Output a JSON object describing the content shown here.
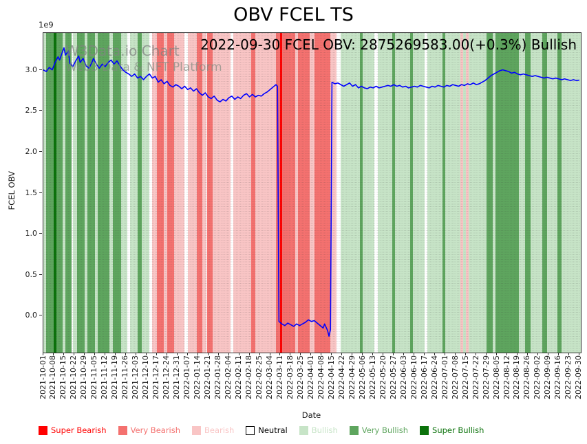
{
  "annotation": "2022-09-30 FCEL OBV: 2875269583.00(+0.3%) Bullish",
  "watermark": {
    "line1": "W3Data.io Chart",
    "line2": "Web3 Data & NFT Platform"
  },
  "chart_data": {
    "type": "line",
    "title": "OBV FCEL TS",
    "xlabel": "Date",
    "ylabel": "FCEL OBV",
    "y_multiplier": "1e9",
    "ylim": [
      -0.45,
      3.45
    ],
    "yticks": [
      0.0,
      0.5,
      1.0,
      1.5,
      2.0,
      2.5,
      3.0
    ],
    "x_total_days": 365,
    "x_tick_step_days": 7,
    "x_tick_labels": [
      "2021-10-01",
      "2021-10-08",
      "2021-10-15",
      "2021-10-22",
      "2021-10-29",
      "2021-11-05",
      "2021-11-12",
      "2021-11-19",
      "2021-11-26",
      "2021-12-03",
      "2021-12-10",
      "2021-12-17",
      "2021-12-24",
      "2021-12-31",
      "2022-01-07",
      "2022-01-14",
      "2022-01-21",
      "2022-01-28",
      "2022-02-04",
      "2022-02-11",
      "2022-02-18",
      "2022-02-25",
      "2022-03-04",
      "2022-03-11",
      "2022-03-18",
      "2022-03-25",
      "2022-04-01",
      "2022-04-08",
      "2022-04-15",
      "2022-04-22",
      "2022-04-29",
      "2022-05-06",
      "2022-05-13",
      "2022-05-20",
      "2022-05-27",
      "2022-06-03",
      "2022-06-10",
      "2022-06-17",
      "2022-06-24",
      "2022-07-01",
      "2022-07-08",
      "2022-07-15",
      "2022-07-22",
      "2022-07-29",
      "2022-08-05",
      "2022-08-12",
      "2022-08-19",
      "2022-08-26",
      "2022-09-02",
      "2022-09-09",
      "2022-09-16",
      "2022-09-23",
      "2022-09-30"
    ],
    "grid": {
      "vertical_dotted_daily": true,
      "horizontal": false
    },
    "series": [
      {
        "name": "FCEL OBV",
        "color": "#0000ff",
        "unit": "1e9",
        "points": [
          [
            0,
            3.0
          ],
          [
            2,
            2.98
          ],
          [
            4,
            3.03
          ],
          [
            6,
            3.0
          ],
          [
            8,
            3.09
          ],
          [
            10,
            3.16
          ],
          [
            11,
            3.12
          ],
          [
            13,
            3.22
          ],
          [
            14,
            3.27
          ],
          [
            15,
            3.18
          ],
          [
            17,
            3.23
          ],
          [
            18,
            3.08
          ],
          [
            20,
            3.04
          ],
          [
            22,
            3.11
          ],
          [
            24,
            3.17
          ],
          [
            25,
            3.09
          ],
          [
            27,
            3.14
          ],
          [
            29,
            3.05
          ],
          [
            31,
            3.02
          ],
          [
            33,
            3.09
          ],
          [
            34,
            3.14
          ],
          [
            36,
            3.07
          ],
          [
            38,
            3.02
          ],
          [
            40,
            3.07
          ],
          [
            42,
            3.04
          ],
          [
            44,
            3.09
          ],
          [
            46,
            3.12
          ],
          [
            48,
            3.07
          ],
          [
            50,
            3.11
          ],
          [
            52,
            3.05
          ],
          [
            54,
            3.0
          ],
          [
            56,
            2.97
          ],
          [
            58,
            2.95
          ],
          [
            60,
            2.92
          ],
          [
            62,
            2.95
          ],
          [
            64,
            2.9
          ],
          [
            66,
            2.92
          ],
          [
            68,
            2.88
          ],
          [
            70,
            2.92
          ],
          [
            72,
            2.95
          ],
          [
            74,
            2.9
          ],
          [
            76,
            2.92
          ],
          [
            78,
            2.85
          ],
          [
            80,
            2.88
          ],
          [
            82,
            2.83
          ],
          [
            84,
            2.86
          ],
          [
            86,
            2.81
          ],
          [
            88,
            2.79
          ],
          [
            90,
            2.82
          ],
          [
            92,
            2.8
          ],
          [
            94,
            2.77
          ],
          [
            96,
            2.8
          ],
          [
            98,
            2.76
          ],
          [
            100,
            2.78
          ],
          [
            102,
            2.74
          ],
          [
            104,
            2.77
          ],
          [
            106,
            2.72
          ],
          [
            108,
            2.69
          ],
          [
            110,
            2.72
          ],
          [
            112,
            2.67
          ],
          [
            114,
            2.65
          ],
          [
            116,
            2.68
          ],
          [
            118,
            2.63
          ],
          [
            120,
            2.61
          ],
          [
            122,
            2.64
          ],
          [
            124,
            2.62
          ],
          [
            126,
            2.66
          ],
          [
            128,
            2.68
          ],
          [
            130,
            2.64
          ],
          [
            132,
            2.67
          ],
          [
            134,
            2.65
          ],
          [
            136,
            2.69
          ],
          [
            138,
            2.71
          ],
          [
            140,
            2.67
          ],
          [
            142,
            2.7
          ],
          [
            144,
            2.67
          ],
          [
            146,
            2.69
          ],
          [
            148,
            2.68
          ],
          [
            150,
            2.71
          ],
          [
            152,
            2.73
          ],
          [
            154,
            2.76
          ],
          [
            156,
            2.79
          ],
          [
            158,
            2.82
          ],
          [
            159,
            2.8
          ],
          [
            160,
            -0.07
          ],
          [
            162,
            -0.1
          ],
          [
            164,
            -0.12
          ],
          [
            166,
            -0.09
          ],
          [
            168,
            -0.11
          ],
          [
            170,
            -0.13
          ],
          [
            172,
            -0.1
          ],
          [
            174,
            -0.12
          ],
          [
            176,
            -0.1
          ],
          [
            178,
            -0.08
          ],
          [
            180,
            -0.05
          ],
          [
            182,
            -0.07
          ],
          [
            184,
            -0.06
          ],
          [
            186,
            -0.09
          ],
          [
            188,
            -0.12
          ],
          [
            190,
            -0.15
          ],
          [
            191,
            -0.1
          ],
          [
            193,
            -0.18
          ],
          [
            194,
            -0.25
          ],
          [
            195,
            -0.17
          ],
          [
            196,
            2.85
          ],
          [
            198,
            2.83
          ],
          [
            200,
            2.84
          ],
          [
            202,
            2.82
          ],
          [
            204,
            2.8
          ],
          [
            206,
            2.82
          ],
          [
            208,
            2.84
          ],
          [
            210,
            2.8
          ],
          [
            212,
            2.82
          ],
          [
            214,
            2.78
          ],
          [
            216,
            2.8
          ],
          [
            218,
            2.78
          ],
          [
            220,
            2.77
          ],
          [
            222,
            2.79
          ],
          [
            224,
            2.78
          ],
          [
            226,
            2.8
          ],
          [
            228,
            2.78
          ],
          [
            230,
            2.79
          ],
          [
            232,
            2.8
          ],
          [
            234,
            2.81
          ],
          [
            236,
            2.8
          ],
          [
            238,
            2.82
          ],
          [
            240,
            2.8
          ],
          [
            242,
            2.81
          ],
          [
            244,
            2.79
          ],
          [
            246,
            2.8
          ],
          [
            248,
            2.78
          ],
          [
            250,
            2.79
          ],
          [
            252,
            2.8
          ],
          [
            254,
            2.79
          ],
          [
            256,
            2.81
          ],
          [
            258,
            2.8
          ],
          [
            260,
            2.79
          ],
          [
            262,
            2.78
          ],
          [
            264,
            2.8
          ],
          [
            266,
            2.79
          ],
          [
            268,
            2.81
          ],
          [
            270,
            2.8
          ],
          [
            272,
            2.79
          ],
          [
            274,
            2.81
          ],
          [
            276,
            2.8
          ],
          [
            278,
            2.82
          ],
          [
            280,
            2.81
          ],
          [
            282,
            2.8
          ],
          [
            284,
            2.82
          ],
          [
            286,
            2.81
          ],
          [
            288,
            2.83
          ],
          [
            290,
            2.82
          ],
          [
            292,
            2.84
          ],
          [
            294,
            2.82
          ],
          [
            296,
            2.83
          ],
          [
            298,
            2.85
          ],
          [
            300,
            2.87
          ],
          [
            302,
            2.9
          ],
          [
            304,
            2.93
          ],
          [
            306,
            2.95
          ],
          [
            308,
            2.97
          ],
          [
            310,
            2.99
          ],
          [
            312,
            3.0
          ],
          [
            314,
            2.99
          ],
          [
            316,
            2.98
          ],
          [
            318,
            2.96
          ],
          [
            320,
            2.97
          ],
          [
            322,
            2.95
          ],
          [
            324,
            2.94
          ],
          [
            326,
            2.95
          ],
          [
            328,
            2.94
          ],
          [
            330,
            2.93
          ],
          [
            332,
            2.92
          ],
          [
            334,
            2.93
          ],
          [
            336,
            2.92
          ],
          [
            338,
            2.91
          ],
          [
            340,
            2.9
          ],
          [
            342,
            2.91
          ],
          [
            344,
            2.9
          ],
          [
            346,
            2.89
          ],
          [
            348,
            2.9
          ],
          [
            350,
            2.89
          ],
          [
            352,
            2.88
          ],
          [
            354,
            2.89
          ],
          [
            356,
            2.88
          ],
          [
            358,
            2.87
          ],
          [
            360,
            2.88
          ],
          [
            362,
            2.87
          ],
          [
            364,
            2.875
          ]
        ]
      }
    ],
    "band_colors": {
      "super_bearish": "#ff0000",
      "very_bearish": "#f4716f",
      "bearish": "#f9c5c5",
      "neutral": "#ffffff",
      "bullish": "#c7e4c7",
      "very_bullish": "#5ea55e",
      "super_bullish": "#0b720b"
    },
    "bands": [
      {
        "s": 0,
        "e": 2,
        "l": "bullish"
      },
      {
        "s": 2,
        "e": 7,
        "l": "very_bullish"
      },
      {
        "s": 7,
        "e": 9,
        "l": "super_bullish"
      },
      {
        "s": 9,
        "e": 13,
        "l": "very_bullish"
      },
      {
        "s": 13,
        "e": 15,
        "l": "bullish"
      },
      {
        "s": 15,
        "e": 19,
        "l": "very_bullish"
      },
      {
        "s": 19,
        "e": 20,
        "l": "neutral"
      },
      {
        "s": 20,
        "e": 23,
        "l": "bullish"
      },
      {
        "s": 23,
        "e": 28,
        "l": "very_bullish"
      },
      {
        "s": 28,
        "e": 30,
        "l": "bullish"
      },
      {
        "s": 30,
        "e": 35,
        "l": "very_bullish"
      },
      {
        "s": 35,
        "e": 37,
        "l": "bullish"
      },
      {
        "s": 37,
        "e": 45,
        "l": "very_bullish"
      },
      {
        "s": 45,
        "e": 47,
        "l": "bullish"
      },
      {
        "s": 47,
        "e": 53,
        "l": "very_bullish"
      },
      {
        "s": 53,
        "e": 57,
        "l": "bullish"
      },
      {
        "s": 57,
        "e": 59,
        "l": "neutral"
      },
      {
        "s": 59,
        "e": 64,
        "l": "bullish"
      },
      {
        "s": 64,
        "e": 67,
        "l": "very_bullish"
      },
      {
        "s": 67,
        "e": 72,
        "l": "bullish"
      },
      {
        "s": 72,
        "e": 74,
        "l": "neutral"
      },
      {
        "s": 74,
        "e": 77,
        "l": "bearish"
      },
      {
        "s": 77,
        "e": 82,
        "l": "very_bearish"
      },
      {
        "s": 82,
        "e": 84,
        "l": "bearish"
      },
      {
        "s": 84,
        "e": 89,
        "l": "very_bearish"
      },
      {
        "s": 89,
        "e": 96,
        "l": "bearish"
      },
      {
        "s": 96,
        "e": 98,
        "l": "neutral"
      },
      {
        "s": 98,
        "e": 104,
        "l": "bearish"
      },
      {
        "s": 104,
        "e": 108,
        "l": "very_bearish"
      },
      {
        "s": 108,
        "e": 111,
        "l": "bearish"
      },
      {
        "s": 111,
        "e": 115,
        "l": "very_bearish"
      },
      {
        "s": 115,
        "e": 127,
        "l": "bearish"
      },
      {
        "s": 127,
        "e": 129,
        "l": "neutral"
      },
      {
        "s": 129,
        "e": 141,
        "l": "bearish"
      },
      {
        "s": 141,
        "e": 144,
        "l": "very_bearish"
      },
      {
        "s": 144,
        "e": 158,
        "l": "bearish"
      },
      {
        "s": 158,
        "e": 161,
        "l": "very_bearish"
      },
      {
        "s": 161,
        "e": 162,
        "l": "super_bearish"
      },
      {
        "s": 162,
        "e": 171,
        "l": "very_bearish"
      },
      {
        "s": 171,
        "e": 173,
        "l": "bearish"
      },
      {
        "s": 173,
        "e": 181,
        "l": "very_bearish"
      },
      {
        "s": 181,
        "e": 184,
        "l": "bearish"
      },
      {
        "s": 184,
        "e": 195,
        "l": "very_bearish"
      },
      {
        "s": 195,
        "e": 199,
        "l": "bearish"
      },
      {
        "s": 199,
        "e": 202,
        "l": "neutral"
      },
      {
        "s": 202,
        "e": 215,
        "l": "bullish"
      },
      {
        "s": 215,
        "e": 217,
        "l": "very_bullish"
      },
      {
        "s": 217,
        "e": 225,
        "l": "bullish"
      },
      {
        "s": 225,
        "e": 227,
        "l": "neutral"
      },
      {
        "s": 227,
        "e": 237,
        "l": "bullish"
      },
      {
        "s": 237,
        "e": 239,
        "l": "very_bullish"
      },
      {
        "s": 239,
        "e": 249,
        "l": "bullish"
      },
      {
        "s": 249,
        "e": 251,
        "l": "very_bullish"
      },
      {
        "s": 251,
        "e": 259,
        "l": "bullish"
      },
      {
        "s": 259,
        "e": 261,
        "l": "neutral"
      },
      {
        "s": 261,
        "e": 271,
        "l": "bullish"
      },
      {
        "s": 271,
        "e": 273,
        "l": "very_bullish"
      },
      {
        "s": 273,
        "e": 283,
        "l": "bullish"
      },
      {
        "s": 283,
        "e": 285,
        "l": "bearish"
      },
      {
        "s": 285,
        "e": 287,
        "l": "bullish"
      },
      {
        "s": 287,
        "e": 289,
        "l": "bearish"
      },
      {
        "s": 289,
        "e": 301,
        "l": "bullish"
      },
      {
        "s": 301,
        "e": 305,
        "l": "very_bullish"
      },
      {
        "s": 305,
        "e": 307,
        "l": "bullish"
      },
      {
        "s": 307,
        "e": 323,
        "l": "very_bullish"
      },
      {
        "s": 323,
        "e": 327,
        "l": "bullish"
      },
      {
        "s": 327,
        "e": 331,
        "l": "very_bullish"
      },
      {
        "s": 331,
        "e": 339,
        "l": "bullish"
      },
      {
        "s": 339,
        "e": 342,
        "l": "very_bullish"
      },
      {
        "s": 342,
        "e": 349,
        "l": "bullish"
      },
      {
        "s": 349,
        "e": 352,
        "l": "very_bullish"
      },
      {
        "s": 352,
        "e": 365,
        "l": "bullish"
      }
    ],
    "legend": {
      "position": "bottom",
      "items": [
        {
          "label": "Super Bearish",
          "color": "#ff0000",
          "edge": false
        },
        {
          "label": "Very Bearish",
          "color": "#f4716f",
          "edge": false
        },
        {
          "label": "Bearish",
          "color": "#f9c5c5",
          "edge": false
        },
        {
          "label": "Neutral",
          "color": "#ffffff",
          "edge": true,
          "text_color": "#000000"
        },
        {
          "label": "Bullish",
          "color": "#c7e4c7",
          "edge": false
        },
        {
          "label": "Very Bullish",
          "color": "#5ea55e",
          "edge": false
        },
        {
          "label": "Super Bullish",
          "color": "#0b720b",
          "edge": false
        }
      ]
    }
  }
}
